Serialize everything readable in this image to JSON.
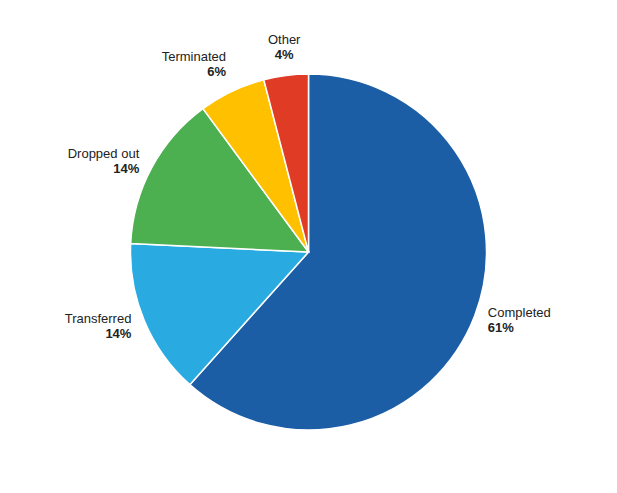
{
  "chart_data": {
    "type": "pie",
    "categories": [
      "Completed",
      "Transferred",
      "Dropped out",
      "Terminated",
      "Other"
    ],
    "values": [
      61,
      14,
      14,
      6,
      4
    ],
    "value_labels": [
      "61%",
      "14%",
      "14%",
      "6%",
      "4%"
    ],
    "colors": [
      "#1B5EA6",
      "#29ABE2",
      "#4CAF50",
      "#FFC000",
      "#E03B24"
    ],
    "data_labels": true
  }
}
